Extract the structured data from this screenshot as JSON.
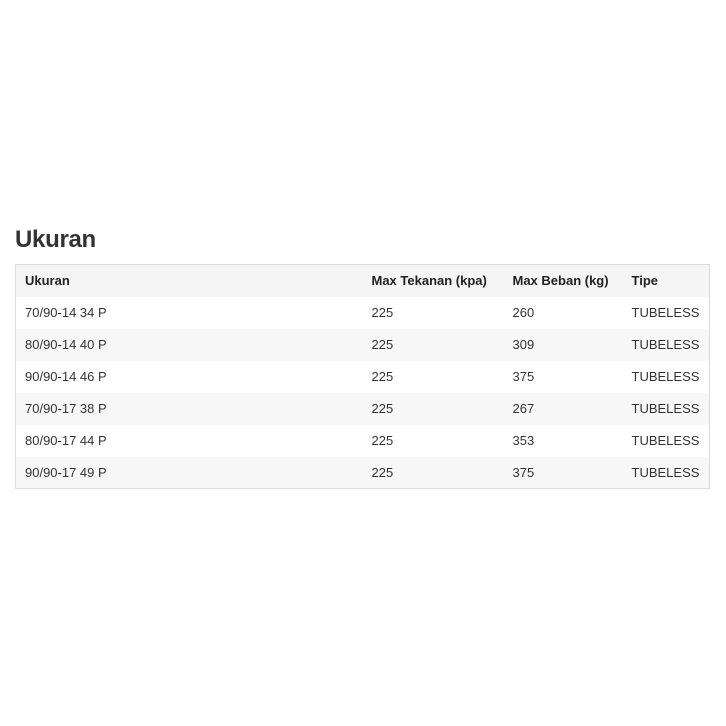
{
  "title": "Ukuran",
  "table": {
    "headers": [
      "Ukuran",
      "Max Tekanan (kpa)",
      "Max Beban (kg)",
      "Tipe"
    ],
    "rows": [
      [
        "70/90-14 34 P",
        "225",
        "260",
        "TUBELESS"
      ],
      [
        "80/90-14 40 P",
        "225",
        "309",
        "TUBELESS"
      ],
      [
        "90/90-14 46 P",
        "225",
        "375",
        "TUBELESS"
      ],
      [
        "70/90-17 38 P",
        "225",
        "267",
        "TUBELESS"
      ],
      [
        "80/90-17 44 P",
        "225",
        "353",
        "TUBELESS"
      ],
      [
        "90/90-17 49 P",
        "225",
        "375",
        "TUBELESS"
      ]
    ]
  }
}
